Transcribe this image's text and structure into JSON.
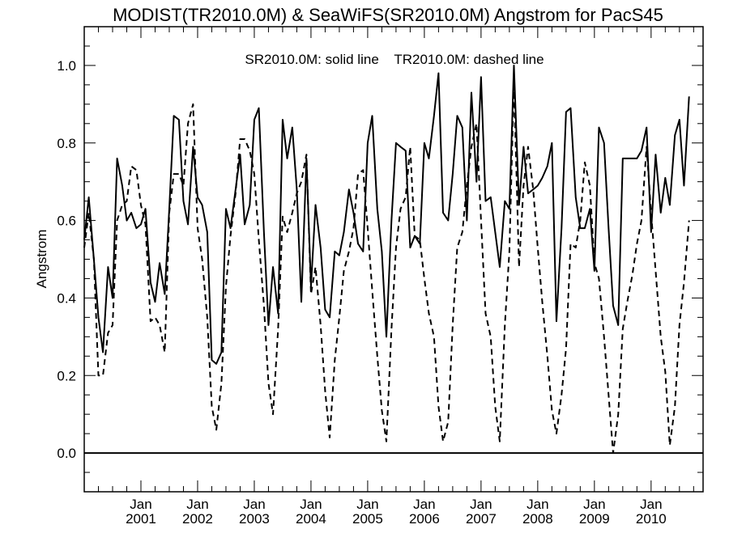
{
  "chart_data": {
    "type": "line",
    "title": "MODIST(TR2010.0M) & SeaWiFS(SR2010.0M)  Angstrom for PacS45",
    "ylabel": "Angstrom",
    "xlabel": "",
    "legend_text": "SR2010.0M: solid line    TR2010.0M: dashed line",
    "ylim": [
      -0.1,
      1.1
    ],
    "xlim": [
      2000.0,
      2010.917
    ],
    "y_ticks": [
      0.0,
      0.2,
      0.4,
      0.6,
      0.8,
      1.0
    ],
    "y_tick_labels": [
      "0.0",
      "0.2",
      "0.4",
      "0.6",
      "0.8",
      "1.0"
    ],
    "x_tick_labels": [
      {
        "month": "Jan",
        "year": "2001"
      },
      {
        "month": "Jan",
        "year": "2002"
      },
      {
        "month": "Jan",
        "year": "2003"
      },
      {
        "month": "Jan",
        "year": "2004"
      },
      {
        "month": "Jan",
        "year": "2005"
      },
      {
        "month": "Jan",
        "year": "2006"
      },
      {
        "month": "Jan",
        "year": "2007"
      },
      {
        "month": "Jan",
        "year": "2008"
      },
      {
        "month": "Jan",
        "year": "2009"
      },
      {
        "month": "Jan",
        "year": "2010"
      }
    ],
    "reference_line_y": 0.0,
    "series": [
      {
        "name": "SR2010.0M",
        "style": "solid",
        "color": "#000000",
        "points": [
          [
            2000.0,
            0.55
          ],
          [
            2000.08,
            0.66
          ],
          [
            2000.17,
            0.5
          ],
          [
            2000.25,
            0.35
          ],
          [
            2000.33,
            0.26
          ],
          [
            2000.42,
            0.48
          ],
          [
            2000.5,
            0.4
          ],
          [
            2000.58,
            0.76
          ],
          [
            2000.67,
            0.69
          ],
          [
            2000.75,
            0.6
          ],
          [
            2000.83,
            0.62
          ],
          [
            2000.92,
            0.58
          ],
          [
            2001.0,
            0.59
          ],
          [
            2001.08,
            0.63
          ],
          [
            2001.17,
            0.44
          ],
          [
            2001.25,
            0.39
          ],
          [
            2001.33,
            0.49
          ],
          [
            2001.42,
            0.41
          ],
          [
            2001.5,
            0.63
          ],
          [
            2001.58,
            0.87
          ],
          [
            2001.67,
            0.86
          ],
          [
            2001.75,
            0.65
          ],
          [
            2001.83,
            0.59
          ],
          [
            2001.92,
            0.79
          ],
          [
            2002.0,
            0.66
          ],
          [
            2002.08,
            0.64
          ],
          [
            2002.17,
            0.57
          ],
          [
            2002.25,
            0.24
          ],
          [
            2002.33,
            0.23
          ],
          [
            2002.42,
            0.26
          ],
          [
            2002.5,
            0.63
          ],
          [
            2002.58,
            0.58
          ],
          [
            2002.67,
            0.68
          ],
          [
            2002.75,
            0.77
          ],
          [
            2002.83,
            0.59
          ],
          [
            2002.92,
            0.64
          ],
          [
            2003.0,
            0.86
          ],
          [
            2003.08,
            0.89
          ],
          [
            2003.17,
            0.57
          ],
          [
            2003.25,
            0.33
          ],
          [
            2003.33,
            0.48
          ],
          [
            2003.42,
            0.36
          ],
          [
            2003.5,
            0.86
          ],
          [
            2003.58,
            0.76
          ],
          [
            2003.67,
            0.84
          ],
          [
            2003.75,
            0.68
          ],
          [
            2003.83,
            0.39
          ],
          [
            2003.92,
            0.76
          ],
          [
            2004.0,
            0.43
          ],
          [
            2004.08,
            0.64
          ],
          [
            2004.17,
            0.53
          ],
          [
            2004.25,
            0.37
          ],
          [
            2004.33,
            0.35
          ],
          [
            2004.42,
            0.52
          ],
          [
            2004.5,
            0.51
          ],
          [
            2004.58,
            0.57
          ],
          [
            2004.67,
            0.68
          ],
          [
            2004.75,
            0.62
          ],
          [
            2004.83,
            0.54
          ],
          [
            2004.92,
            0.52
          ],
          [
            2005.0,
            0.8
          ],
          [
            2005.08,
            0.87
          ],
          [
            2005.17,
            0.63
          ],
          [
            2005.25,
            0.52
          ],
          [
            2005.33,
            0.3
          ],
          [
            2005.42,
            0.6
          ],
          [
            2005.5,
            0.8
          ],
          [
            2005.58,
            0.79
          ],
          [
            2005.67,
            0.78
          ],
          [
            2005.75,
            0.53
          ],
          [
            2005.83,
            0.56
          ],
          [
            2005.92,
            0.54
          ],
          [
            2006.0,
            0.8
          ],
          [
            2006.08,
            0.76
          ],
          [
            2006.17,
            0.87
          ],
          [
            2006.25,
            0.98
          ],
          [
            2006.33,
            0.62
          ],
          [
            2006.42,
            0.6
          ],
          [
            2006.5,
            0.72
          ],
          [
            2006.58,
            0.87
          ],
          [
            2006.67,
            0.84
          ],
          [
            2006.75,
            0.6
          ],
          [
            2006.83,
            0.93
          ],
          [
            2006.92,
            0.7
          ],
          [
            2007.0,
            0.97
          ],
          [
            2007.08,
            0.65
          ],
          [
            2007.17,
            0.66
          ],
          [
            2007.25,
            0.57
          ],
          [
            2007.33,
            0.48
          ],
          [
            2007.42,
            0.65
          ],
          [
            2007.5,
            0.63
          ],
          [
            2007.58,
            1.0
          ],
          [
            2007.67,
            0.64
          ],
          [
            2007.75,
            0.79
          ],
          [
            2007.83,
            0.67
          ],
          [
            2007.92,
            0.68
          ],
          [
            2008.0,
            0.69
          ],
          [
            2008.08,
            0.71
          ],
          [
            2008.17,
            0.74
          ],
          [
            2008.25,
            0.8
          ],
          [
            2008.33,
            0.34
          ],
          [
            2008.42,
            0.58
          ],
          [
            2008.5,
            0.88
          ],
          [
            2008.58,
            0.89
          ],
          [
            2008.67,
            0.66
          ],
          [
            2008.75,
            0.58
          ],
          [
            2008.83,
            0.58
          ],
          [
            2008.92,
            0.63
          ],
          [
            2009.0,
            0.47
          ],
          [
            2009.08,
            0.84
          ],
          [
            2009.17,
            0.8
          ],
          [
            2009.25,
            0.58
          ],
          [
            2009.33,
            0.38
          ],
          [
            2009.42,
            0.33
          ],
          [
            2009.5,
            0.76
          ],
          [
            2009.58,
            0.76
          ],
          [
            2009.67,
            0.76
          ],
          [
            2009.75,
            0.76
          ],
          [
            2009.83,
            0.78
          ],
          [
            2009.92,
            0.84
          ],
          [
            2010.0,
            0.57
          ],
          [
            2010.08,
            0.77
          ],
          [
            2010.17,
            0.62
          ],
          [
            2010.25,
            0.71
          ],
          [
            2010.33,
            0.64
          ],
          [
            2010.42,
            0.82
          ],
          [
            2010.5,
            0.86
          ],
          [
            2010.58,
            0.69
          ],
          [
            2010.67,
            0.92
          ]
        ]
      },
      {
        "name": "TR2010.0M",
        "style": "dashed",
        "color": "#000000",
        "points": [
          [
            2000.0,
            0.53
          ],
          [
            2000.08,
            0.62
          ],
          [
            2000.17,
            0.5
          ],
          [
            2000.25,
            0.2
          ],
          [
            2000.33,
            0.2
          ],
          [
            2000.42,
            0.31
          ],
          [
            2000.5,
            0.33
          ],
          [
            2000.58,
            0.6
          ],
          [
            2000.67,
            0.64
          ],
          [
            2000.75,
            0.65
          ],
          [
            2000.83,
            0.74
          ],
          [
            2000.92,
            0.73
          ],
          [
            2001.0,
            0.64
          ],
          [
            2001.08,
            0.59
          ],
          [
            2001.17,
            0.34
          ],
          [
            2001.25,
            0.35
          ],
          [
            2001.33,
            0.33
          ],
          [
            2001.42,
            0.26
          ],
          [
            2001.5,
            0.62
          ],
          [
            2001.58,
            0.72
          ],
          [
            2001.67,
            0.72
          ],
          [
            2001.75,
            0.69
          ],
          [
            2001.83,
            0.85
          ],
          [
            2001.92,
            0.9
          ],
          [
            2002.0,
            0.58
          ],
          [
            2002.08,
            0.5
          ],
          [
            2002.17,
            0.35
          ],
          [
            2002.25,
            0.12
          ],
          [
            2002.33,
            0.06
          ],
          [
            2002.42,
            0.18
          ],
          [
            2002.5,
            0.43
          ],
          [
            2002.58,
            0.56
          ],
          [
            2002.67,
            0.67
          ],
          [
            2002.75,
            0.81
          ],
          [
            2002.83,
            0.81
          ],
          [
            2002.92,
            0.78
          ],
          [
            2003.0,
            0.72
          ],
          [
            2003.08,
            0.55
          ],
          [
            2003.17,
            0.38
          ],
          [
            2003.25,
            0.18
          ],
          [
            2003.33,
            0.1
          ],
          [
            2003.42,
            0.32
          ],
          [
            2003.5,
            0.61
          ],
          [
            2003.58,
            0.57
          ],
          [
            2003.67,
            0.62
          ],
          [
            2003.75,
            0.67
          ],
          [
            2003.83,
            0.7
          ],
          [
            2003.92,
            0.77
          ],
          [
            2004.0,
            0.41
          ],
          [
            2004.08,
            0.48
          ],
          [
            2004.17,
            0.33
          ],
          [
            2004.25,
            0.16
          ],
          [
            2004.33,
            0.04
          ],
          [
            2004.42,
            0.24
          ],
          [
            2004.5,
            0.35
          ],
          [
            2004.58,
            0.47
          ],
          [
            2004.67,
            0.52
          ],
          [
            2004.75,
            0.58
          ],
          [
            2004.83,
            0.72
          ],
          [
            2004.92,
            0.73
          ],
          [
            2005.0,
            0.58
          ],
          [
            2005.08,
            0.42
          ],
          [
            2005.17,
            0.25
          ],
          [
            2005.25,
            0.11
          ],
          [
            2005.33,
            0.03
          ],
          [
            2005.42,
            0.32
          ],
          [
            2005.5,
            0.53
          ],
          [
            2005.58,
            0.63
          ],
          [
            2005.67,
            0.66
          ],
          [
            2005.75,
            0.79
          ],
          [
            2005.83,
            0.56
          ],
          [
            2005.92,
            0.55
          ],
          [
            2006.0,
            0.45
          ],
          [
            2006.08,
            0.36
          ],
          [
            2006.17,
            0.3
          ],
          [
            2006.25,
            0.12
          ],
          [
            2006.33,
            0.03
          ],
          [
            2006.42,
            0.08
          ],
          [
            2006.5,
            0.33
          ],
          [
            2006.58,
            0.53
          ],
          [
            2006.67,
            0.57
          ],
          [
            2006.75,
            0.69
          ],
          [
            2006.83,
            0.79
          ],
          [
            2006.92,
            0.85
          ],
          [
            2007.0,
            0.6
          ],
          [
            2007.08,
            0.36
          ],
          [
            2007.17,
            0.3
          ],
          [
            2007.25,
            0.12
          ],
          [
            2007.33,
            0.03
          ],
          [
            2007.42,
            0.33
          ],
          [
            2007.5,
            0.52
          ],
          [
            2007.58,
            0.96
          ],
          [
            2007.67,
            0.48
          ],
          [
            2007.75,
            0.69
          ],
          [
            2007.83,
            0.79
          ],
          [
            2007.92,
            0.68
          ],
          [
            2008.0,
            0.53
          ],
          [
            2008.08,
            0.39
          ],
          [
            2008.17,
            0.25
          ],
          [
            2008.25,
            0.11
          ],
          [
            2008.33,
            0.05
          ],
          [
            2008.42,
            0.15
          ],
          [
            2008.5,
            0.27
          ],
          [
            2008.58,
            0.54
          ],
          [
            2008.67,
            0.53
          ],
          [
            2008.75,
            0.6
          ],
          [
            2008.83,
            0.75
          ],
          [
            2008.92,
            0.69
          ],
          [
            2009.0,
            0.49
          ],
          [
            2009.08,
            0.45
          ],
          [
            2009.17,
            0.3
          ],
          [
            2009.25,
            0.15
          ],
          [
            2009.33,
            0.0
          ],
          [
            2009.42,
            0.1
          ],
          [
            2009.5,
            0.32
          ],
          [
            2009.58,
            0.39
          ],
          [
            2009.67,
            0.46
          ],
          [
            2009.75,
            0.54
          ],
          [
            2009.83,
            0.6
          ],
          [
            2009.92,
            0.79
          ],
          [
            2010.0,
            0.62
          ],
          [
            2010.08,
            0.47
          ],
          [
            2010.17,
            0.3
          ],
          [
            2010.25,
            0.21
          ],
          [
            2010.33,
            0.02
          ],
          [
            2010.42,
            0.12
          ],
          [
            2010.5,
            0.33
          ],
          [
            2010.58,
            0.44
          ],
          [
            2010.67,
            0.6
          ]
        ]
      }
    ]
  }
}
